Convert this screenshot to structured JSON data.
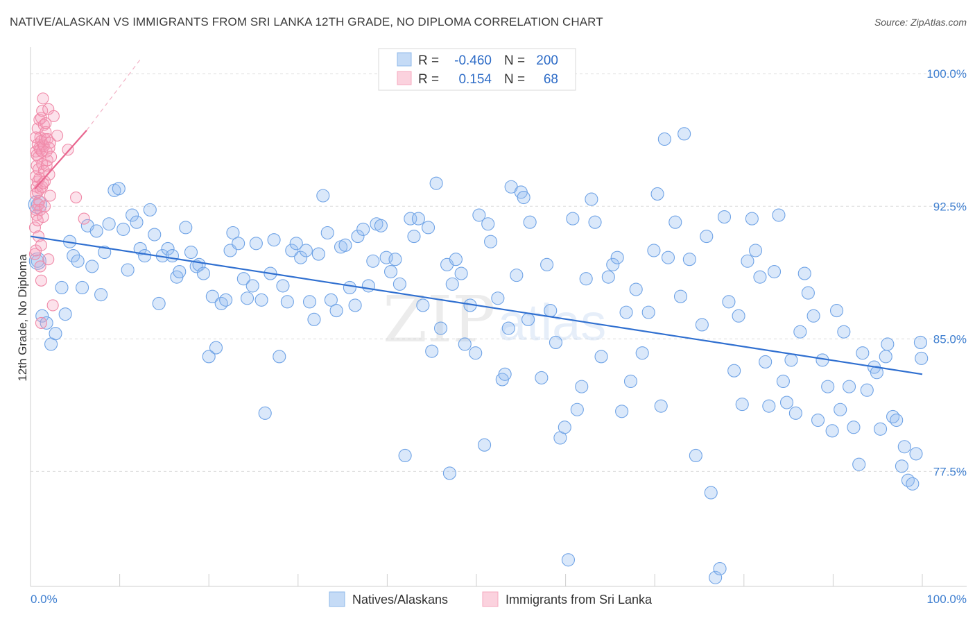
{
  "header": {
    "title": "NATIVE/ALASKAN VS IMMIGRANTS FROM SRI LANKA 12TH GRADE, NO DIPLOMA CORRELATION CHART",
    "source": "Source: ZipAtlas.com"
  },
  "chart_data": {
    "type": "scatter",
    "title": "NATIVE/ALASKAN VS IMMIGRANTS FROM SRI LANKA 12TH GRADE, NO DIPLOMA CORRELATION CHART",
    "xlabel": "",
    "ylabel": "12th Grade, No Diploma",
    "xlim": [
      0,
      100
    ],
    "ylim": [
      71.0,
      101.5
    ],
    "x_tick_labels": [
      "0.0%",
      "100.0%"
    ],
    "y_ticks": [
      77.5,
      85.0,
      92.5,
      100.0
    ],
    "y_tick_labels": [
      "77.5%",
      "85.0%",
      "92.5%",
      "100.0%"
    ],
    "watermark": {
      "zip": "ZIP",
      "atlas": "atlas"
    },
    "legend": {
      "stats": [
        {
          "r_label": "R =",
          "r": "-0.460",
          "n_label": "N =",
          "n": "200",
          "color": "#8fb9ea"
        },
        {
          "r_label": "R =",
          "r": "0.154",
          "n_label": "N =",
          "n": "68",
          "color": "#f5a8bf"
        }
      ],
      "bottom": [
        "Natives/Alaskans",
        "Immigrants from Sri Lanka"
      ]
    },
    "colors": {
      "blue": "#6fa3e6",
      "blue_line": "#2f6fd0",
      "pink": "#f08aa8",
      "pink_line": "#e8658e"
    },
    "series": [
      {
        "name": "Natives/Alaskans",
        "trend": [
          [
            0,
            90.8
          ],
          [
            100,
            83.0
          ]
        ],
        "points": [
          [
            0.8,
            92.6
          ],
          [
            0.8,
            89.4
          ],
          [
            1.3,
            86.3
          ],
          [
            1.8,
            85.9
          ],
          [
            2.3,
            84.7
          ],
          [
            2.8,
            85.3
          ],
          [
            3.5,
            87.9
          ],
          [
            3.9,
            86.4
          ],
          [
            4.4,
            90.5
          ],
          [
            4.8,
            89.7
          ],
          [
            5.3,
            89.4
          ],
          [
            5.8,
            87.9
          ],
          [
            6.4,
            91.4
          ],
          [
            6.9,
            89.1
          ],
          [
            7.4,
            91.1
          ],
          [
            7.9,
            87.5
          ],
          [
            8.3,
            89.9
          ],
          [
            8.8,
            91.5
          ],
          [
            9.4,
            93.4
          ],
          [
            9.9,
            93.5
          ],
          [
            10.4,
            91.2
          ],
          [
            10.9,
            88.9
          ],
          [
            11.4,
            92.0
          ],
          [
            11.9,
            91.6
          ],
          [
            12.3,
            90.1
          ],
          [
            12.8,
            89.7
          ],
          [
            13.4,
            92.3
          ],
          [
            13.9,
            90.9
          ],
          [
            14.4,
            87.0
          ],
          [
            14.8,
            89.7
          ],
          [
            15.4,
            90.1
          ],
          [
            15.9,
            89.7
          ],
          [
            16.4,
            88.5
          ],
          [
            16.7,
            88.8
          ],
          [
            17.4,
            91.3
          ],
          [
            18.0,
            89.9
          ],
          [
            18.6,
            89.1
          ],
          [
            18.9,
            89.2
          ],
          [
            19.4,
            88.7
          ],
          [
            20.0,
            84.0
          ],
          [
            20.4,
            87.4
          ],
          [
            20.8,
            84.5
          ],
          [
            21.4,
            87.0
          ],
          [
            21.9,
            87.2
          ],
          [
            22.4,
            90.0
          ],
          [
            22.7,
            91.0
          ],
          [
            23.3,
            90.4
          ],
          [
            23.9,
            88.4
          ],
          [
            24.3,
            87.3
          ],
          [
            24.9,
            88.0
          ],
          [
            25.3,
            90.4
          ],
          [
            25.9,
            87.2
          ],
          [
            26.3,
            80.8
          ],
          [
            26.9,
            88.7
          ],
          [
            27.3,
            90.6
          ],
          [
            27.9,
            84.0
          ],
          [
            28.3,
            88.0
          ],
          [
            28.8,
            87.1
          ],
          [
            29.3,
            90.0
          ],
          [
            29.8,
            90.4
          ],
          [
            30.3,
            89.6
          ],
          [
            30.9,
            90.0
          ],
          [
            31.3,
            87.1
          ],
          [
            31.8,
            86.1
          ],
          [
            32.3,
            89.8
          ],
          [
            32.8,
            93.1
          ],
          [
            33.3,
            91.0
          ],
          [
            33.7,
            87.2
          ],
          [
            34.3,
            86.6
          ],
          [
            34.8,
            90.2
          ],
          [
            35.3,
            90.3
          ],
          [
            35.8,
            87.9
          ],
          [
            36.4,
            86.9
          ],
          [
            36.7,
            90.8
          ],
          [
            37.3,
            91.2
          ],
          [
            37.9,
            88.0
          ],
          [
            38.4,
            89.4
          ],
          [
            38.8,
            91.5
          ],
          [
            39.3,
            91.4
          ],
          [
            39.9,
            89.6
          ],
          [
            40.4,
            88.8
          ],
          [
            40.9,
            89.5
          ],
          [
            41.4,
            88.1
          ],
          [
            42.0,
            78.4
          ],
          [
            42.6,
            91.8
          ],
          [
            43.0,
            90.8
          ],
          [
            43.5,
            91.8
          ],
          [
            44.0,
            86.9
          ],
          [
            44.6,
            91.3
          ],
          [
            45.0,
            84.3
          ],
          [
            45.5,
            93.8
          ],
          [
            46.0,
            85.6
          ],
          [
            46.7,
            89.2
          ],
          [
            47.0,
            77.4
          ],
          [
            47.3,
            88.1
          ],
          [
            47.7,
            89.5
          ],
          [
            48.3,
            88.7
          ],
          [
            48.7,
            84.7
          ],
          [
            49.3,
            86.9
          ],
          [
            49.9,
            84.2
          ],
          [
            50.3,
            92.0
          ],
          [
            50.9,
            79.0
          ],
          [
            51.3,
            91.5
          ],
          [
            51.6,
            90.5
          ],
          [
            52.4,
            87.3
          ],
          [
            52.9,
            82.7
          ],
          [
            53.2,
            83.0
          ],
          [
            53.6,
            85.6
          ],
          [
            53.9,
            93.6
          ],
          [
            54.5,
            88.6
          ],
          [
            55.0,
            93.3
          ],
          [
            55.3,
            93.0
          ],
          [
            55.8,
            86.1
          ],
          [
            56.0,
            91.6
          ],
          [
            57.3,
            82.8
          ],
          [
            57.9,
            89.2
          ],
          [
            58.3,
            86.6
          ],
          [
            58.9,
            84.8
          ],
          [
            59.4,
            79.4
          ],
          [
            59.9,
            80.0
          ],
          [
            60.3,
            72.5
          ],
          [
            60.8,
            91.8
          ],
          [
            61.3,
            81.0
          ],
          [
            61.8,
            82.3
          ],
          [
            62.3,
            88.4
          ],
          [
            62.9,
            92.9
          ],
          [
            63.3,
            91.6
          ],
          [
            64.0,
            84.0
          ],
          [
            64.8,
            88.5
          ],
          [
            65.3,
            89.2
          ],
          [
            65.8,
            89.6
          ],
          [
            66.3,
            80.9
          ],
          [
            66.8,
            86.5
          ],
          [
            67.3,
            82.6
          ],
          [
            67.9,
            87.8
          ],
          [
            68.6,
            84.2
          ],
          [
            69.3,
            86.5
          ],
          [
            69.9,
            90.0
          ],
          [
            70.3,
            93.2
          ],
          [
            70.7,
            81.2
          ],
          [
            71.1,
            96.3
          ],
          [
            71.5,
            89.6
          ],
          [
            72.3,
            91.6
          ],
          [
            72.9,
            87.4
          ],
          [
            73.3,
            96.6
          ],
          [
            73.9,
            89.5
          ],
          [
            74.6,
            78.4
          ],
          [
            75.3,
            85.8
          ],
          [
            75.8,
            90.8
          ],
          [
            76.3,
            76.3
          ],
          [
            76.8,
            71.5
          ],
          [
            77.3,
            72.0
          ],
          [
            77.8,
            91.9
          ],
          [
            78.3,
            87.1
          ],
          [
            78.9,
            83.2
          ],
          [
            79.4,
            86.3
          ],
          [
            79.8,
            81.3
          ],
          [
            80.4,
            89.4
          ],
          [
            80.9,
            91.8
          ],
          [
            81.3,
            90.0
          ],
          [
            81.8,
            88.5
          ],
          [
            82.4,
            83.7
          ],
          [
            82.8,
            81.2
          ],
          [
            83.4,
            88.8
          ],
          [
            83.9,
            92.0
          ],
          [
            84.4,
            82.6
          ],
          [
            84.8,
            81.4
          ],
          [
            85.3,
            83.8
          ],
          [
            85.8,
            80.8
          ],
          [
            86.3,
            85.4
          ],
          [
            86.8,
            88.7
          ],
          [
            87.2,
            87.6
          ],
          [
            87.8,
            86.3
          ],
          [
            88.3,
            80.4
          ],
          [
            88.8,
            83.8
          ],
          [
            89.4,
            82.3
          ],
          [
            89.9,
            79.8
          ],
          [
            90.4,
            86.6
          ],
          [
            90.8,
            81.0
          ],
          [
            91.2,
            85.4
          ],
          [
            91.8,
            82.3
          ],
          [
            92.3,
            80.0
          ],
          [
            92.9,
            77.9
          ],
          [
            93.3,
            84.2
          ],
          [
            93.8,
            82.1
          ],
          [
            94.6,
            83.4
          ],
          [
            94.9,
            83.1
          ],
          [
            95.3,
            79.9
          ],
          [
            95.9,
            84.0
          ],
          [
            96.1,
            84.7
          ],
          [
            96.7,
            80.6
          ],
          [
            97.1,
            80.4
          ],
          [
            97.7,
            77.8
          ],
          [
            98.0,
            78.9
          ],
          [
            98.4,
            77.0
          ],
          [
            98.9,
            76.8
          ],
          [
            99.3,
            78.5
          ],
          [
            99.8,
            84.8
          ],
          [
            99.9,
            83.9
          ]
        ]
      },
      {
        "name": "Immigrants from Sri Lanka",
        "trend": [
          [
            0.5,
            93.5
          ],
          [
            6.3,
            96.8
          ]
        ],
        "trend_dashed": [
          [
            6.3,
            96.8
          ],
          [
            12.3,
            100.8
          ]
        ],
        "points": [
          [
            0.5,
            89.8
          ],
          [
            0.5,
            91.3
          ],
          [
            0.6,
            92.3
          ],
          [
            0.6,
            93.2
          ],
          [
            0.6,
            94.2
          ],
          [
            0.6,
            95.6
          ],
          [
            0.6,
            96.4
          ],
          [
            0.6,
            90.0
          ],
          [
            0.7,
            92.0
          ],
          [
            0.7,
            93.6
          ],
          [
            0.7,
            94.8
          ],
          [
            0.7,
            95.4
          ],
          [
            0.8,
            91.7
          ],
          [
            0.8,
            93.3
          ],
          [
            0.8,
            93.9
          ],
          [
            0.8,
            96.0
          ],
          [
            0.8,
            96.9
          ],
          [
            0.9,
            90.8
          ],
          [
            0.9,
            92.6
          ],
          [
            0.9,
            94.6
          ],
          [
            0.9,
            95.3
          ],
          [
            1.0,
            92.8
          ],
          [
            1.0,
            94.1
          ],
          [
            1.0,
            95.8
          ],
          [
            1.0,
            97.4
          ],
          [
            1.1,
            89.1
          ],
          [
            1.1,
            92.3
          ],
          [
            1.1,
            93.5
          ],
          [
            1.1,
            95.7
          ],
          [
            1.1,
            96.4
          ],
          [
            1.2,
            85.9
          ],
          [
            1.2,
            88.3
          ],
          [
            1.2,
            90.3
          ],
          [
            1.2,
            96.2
          ],
          [
            1.2,
            97.5
          ],
          [
            1.3,
            93.6
          ],
          [
            1.3,
            94.9
          ],
          [
            1.3,
            95.6
          ],
          [
            1.3,
            97.9
          ],
          [
            1.4,
            91.9
          ],
          [
            1.4,
            93.8
          ],
          [
            1.4,
            96.0
          ],
          [
            1.4,
            98.6
          ],
          [
            1.5,
            94.5
          ],
          [
            1.5,
            95.9
          ],
          [
            1.5,
            97.1
          ],
          [
            1.6,
            92.5
          ],
          [
            1.6,
            93.9
          ],
          [
            1.6,
            96.3
          ],
          [
            1.7,
            96.7
          ],
          [
            1.7,
            97.2
          ],
          [
            1.8,
            94.8
          ],
          [
            1.8,
            95.6
          ],
          [
            1.9,
            95.1
          ],
          [
            1.9,
            96.3
          ],
          [
            2.0,
            98.0
          ],
          [
            2.0,
            89.5
          ],
          [
            2.1,
            94.3
          ],
          [
            2.1,
            95.8
          ],
          [
            2.2,
            93.1
          ],
          [
            2.2,
            96.1
          ],
          [
            2.3,
            95.3
          ],
          [
            2.5,
            86.9
          ],
          [
            2.6,
            97.6
          ],
          [
            3.0,
            96.5
          ],
          [
            4.2,
            95.7
          ],
          [
            5.1,
            93.0
          ],
          [
            6.0,
            91.8
          ]
        ]
      }
    ]
  }
}
